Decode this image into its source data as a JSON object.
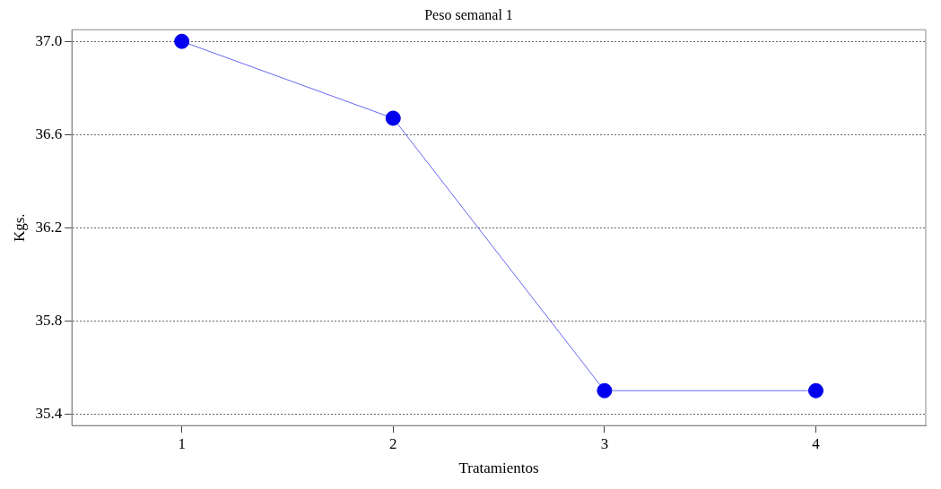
{
  "chart_data": {
    "type": "line",
    "title": "Peso semanal 1",
    "xlabel": "Tratamientos",
    "ylabel": "Kgs.",
    "x": [
      1,
      2,
      3,
      4
    ],
    "series": [
      {
        "color": "#0000ee",
        "values": [
          37.0,
          36.67,
          35.5,
          35.5
        ]
      }
    ],
    "xlim": [
      0.48,
      4.52
    ],
    "xticks": [
      1,
      2,
      3,
      4
    ],
    "ylim": [
      35.35,
      37.05
    ],
    "yticks": [
      {
        "value": 35.4,
        "label": "35.4"
      },
      {
        "value": 35.8,
        "label": "35.8"
      },
      {
        "value": 36.2,
        "label": "36.2"
      },
      {
        "value": 36.6,
        "label": "36.6"
      },
      {
        "value": 37.0,
        "label": "37.0"
      }
    ],
    "grid": "y",
    "legend": false,
    "marker": "circle",
    "line_style": "solid"
  }
}
